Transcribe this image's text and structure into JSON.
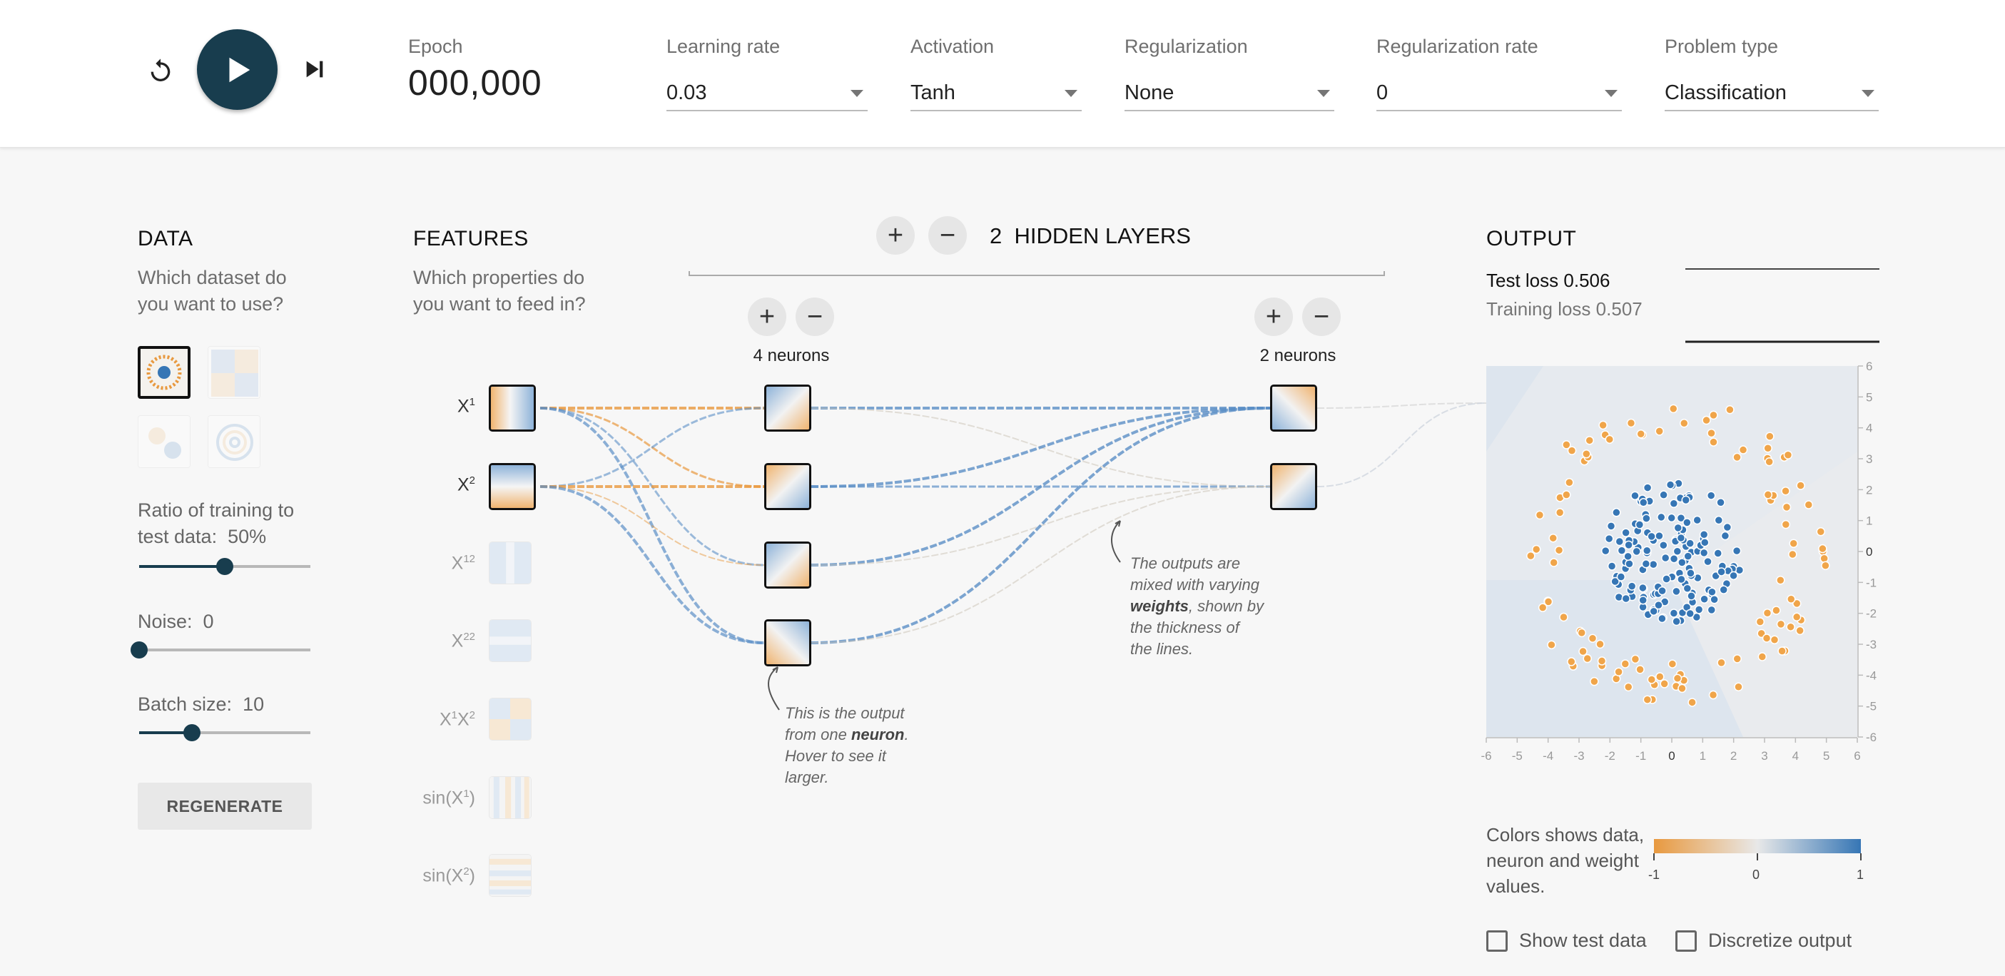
{
  "controls": {
    "reset_icon": "reset-icon",
    "play_icon": "play-icon",
    "step_icon": "step-icon"
  },
  "epoch": {
    "label": "Epoch",
    "value": "000,000"
  },
  "params": {
    "learning_rate": {
      "label": "Learning rate",
      "value": "0.03"
    },
    "activation": {
      "label": "Activation",
      "value": "Tanh"
    },
    "regularization": {
      "label": "Regularization",
      "value": "None"
    },
    "regularization_rate": {
      "label": "Regularization rate",
      "value": "0"
    },
    "problem_type": {
      "label": "Problem type",
      "value": "Classification"
    }
  },
  "data": {
    "heading": "DATA",
    "question_line1": "Which dataset do",
    "question_line2": "you want to use?",
    "datasets": [
      "circle",
      "xor",
      "gaussian",
      "spiral"
    ],
    "selected_dataset": "circle",
    "ratio_line1": "Ratio of training to",
    "ratio_label": "test data:",
    "ratio_value": "50%",
    "ratio_fraction": 0.5,
    "noise_label": "Noise:",
    "noise_value": "0",
    "noise_fraction": 0.0,
    "batch_label": "Batch size:",
    "batch_value": "10",
    "batch_fraction": 0.31,
    "regenerate": "REGENERATE"
  },
  "features": {
    "heading": "FEATURES",
    "question_line1": "Which properties do",
    "question_line2": "you want to feed in?",
    "items": [
      {
        "base": "X",
        "sup": "1",
        "tail": "",
        "active": true
      },
      {
        "base": "X",
        "sup": "2",
        "tail": "",
        "active": true
      },
      {
        "base": "X",
        "sup": "12",
        "tail": "",
        "active": false
      },
      {
        "base": "X",
        "sup": "22",
        "tail": "",
        "active": false
      },
      {
        "base": "X",
        "sup": "1",
        "mid": "X",
        "sup2": "2",
        "active": false
      },
      {
        "base": "sin(X",
        "sup": "1",
        "tail": ")",
        "active": false
      },
      {
        "base": "sin(X",
        "sup": "2",
        "tail": ")",
        "active": false
      }
    ]
  },
  "hidden": {
    "count": "2",
    "label": "HIDDEN LAYERS",
    "layer1_neurons": "4 neurons",
    "layer2_neurons": "2 neurons",
    "plus_icon": "plus-icon",
    "minus_icon": "minus-icon"
  },
  "notes": {
    "neuron_note": [
      "This is the output",
      "from one ",
      "neuron",
      ".",
      "Hover to see it",
      "larger."
    ],
    "weights_note": [
      "The outputs are",
      "mixed with varying",
      "weights",
      ", shown by",
      "the thickness of",
      "the lines."
    ]
  },
  "output": {
    "heading": "OUTPUT",
    "test_loss_label": "Test loss",
    "test_loss": "0.506",
    "training_loss_label": "Training loss",
    "training_loss": "0.507",
    "axis_ticks": [
      "-6",
      "-5",
      "-4",
      "-3",
      "-2",
      "-1",
      "0",
      "1",
      "2",
      "3",
      "4",
      "5",
      "6"
    ],
    "legend_text": "Colors shows data, neuron and weight values.",
    "legend_min": "-1",
    "legend_mid": "0",
    "legend_max": "1",
    "show_test_data": "Show test data",
    "discretize_output": "Discretize output"
  },
  "colors": {
    "positive": "#3676b5",
    "negative": "#e8993f",
    "accent": "#183d4e"
  }
}
